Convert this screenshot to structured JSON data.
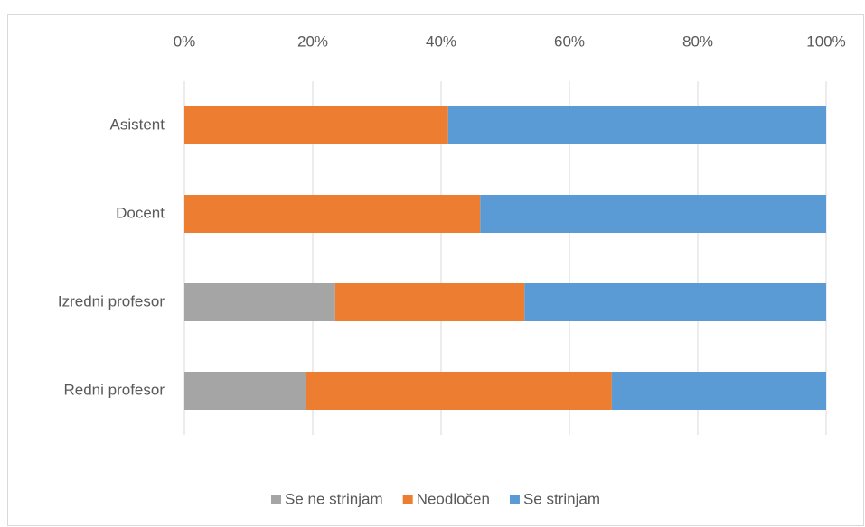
{
  "chart_data": {
    "type": "stacked-bar-horizontal",
    "categories": [
      "Asistent",
      "Docent",
      "Izredni profesor",
      "Redni profesor"
    ],
    "series": [
      {
        "name": "Se ne strinjam",
        "color": "#a5a5a5",
        "values": [
          0,
          0,
          23.5,
          19.0
        ]
      },
      {
        "name": "Neodločen",
        "color": "#ed7d31",
        "values": [
          41.1,
          46.1,
          29.5,
          47.6
        ]
      },
      {
        "name": "Se strinjam",
        "color": "#5b9bd5",
        "values": [
          58.9,
          53.9,
          47.0,
          33.4
        ]
      }
    ],
    "xlim": [
      0,
      100
    ],
    "xticks": [
      {
        "value": 0,
        "label": "0%"
      },
      {
        "value": 20,
        "label": "20%"
      },
      {
        "value": 40,
        "label": "40%"
      },
      {
        "value": 60,
        "label": "60%"
      },
      {
        "value": 80,
        "label": "80%"
      },
      {
        "value": 100,
        "label": "100%"
      }
    ],
    "grid": true,
    "legend": "bottom"
  }
}
